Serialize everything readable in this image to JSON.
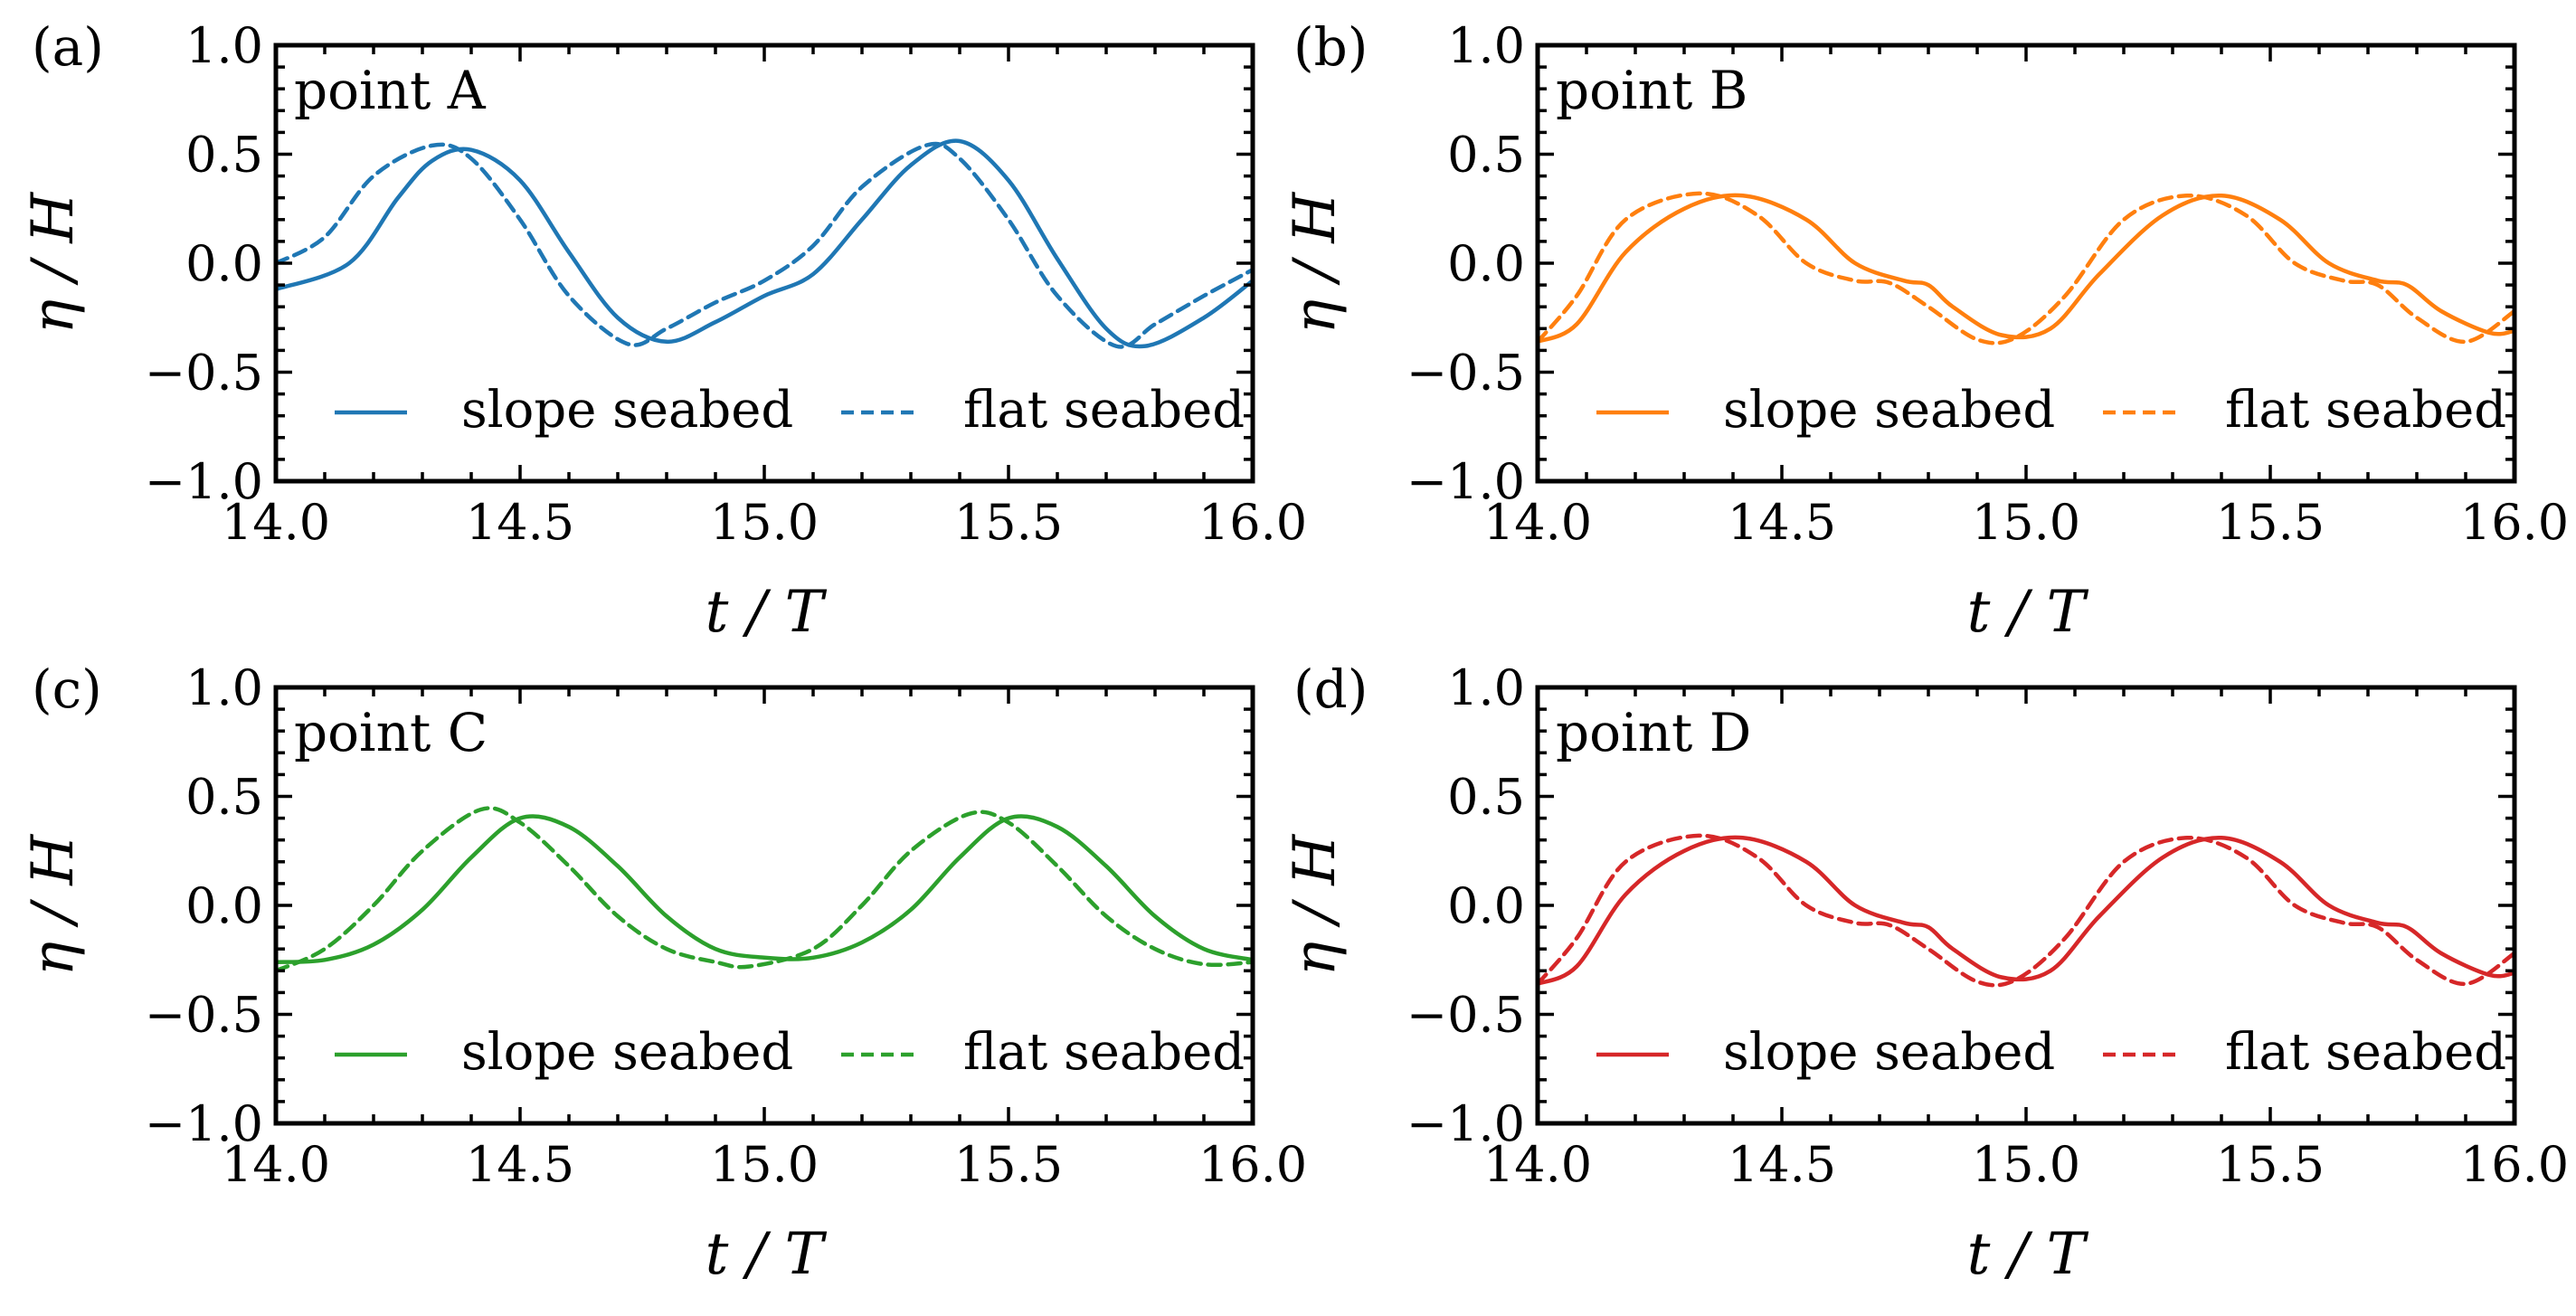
{
  "chart_data": [
    {
      "type": "line",
      "panel_label": "(a)",
      "title": "point A",
      "color": "#1f77b4",
      "xlabel": "t / T",
      "ylabel": "η / H",
      "xlim": [
        14.0,
        16.0
      ],
      "ylim": [
        -1.0,
        1.0
      ],
      "xticks": [
        "14.0",
        "14.5",
        "15.0",
        "15.5",
        "16.0"
      ],
      "yticks": [
        "1.0",
        "0.5",
        "0.0",
        "−0.5",
        "−1.0"
      ],
      "legend": "bottom",
      "series": [
        {
          "name": "slope seabed",
          "style": "solid",
          "x": [
            14.0,
            14.15,
            14.25,
            14.32,
            14.4,
            14.5,
            14.6,
            14.7,
            14.8,
            14.9,
            15.0,
            15.1,
            15.2,
            15.3,
            15.4,
            15.5,
            15.6,
            15.7,
            15.78,
            15.9,
            16.0
          ],
          "y": [
            -0.12,
            0.0,
            0.3,
            0.47,
            0.52,
            0.38,
            0.05,
            -0.25,
            -0.36,
            -0.27,
            -0.15,
            -0.05,
            0.2,
            0.45,
            0.56,
            0.38,
            0.02,
            -0.3,
            -0.38,
            -0.25,
            -0.08
          ]
        },
        {
          "name": "flat seabed",
          "style": "dashed",
          "x": [
            14.0,
            14.1,
            14.2,
            14.32,
            14.4,
            14.5,
            14.6,
            14.72,
            14.8,
            14.9,
            15.0,
            15.1,
            15.2,
            15.33,
            15.4,
            15.5,
            15.6,
            15.72,
            15.8,
            15.9,
            16.0
          ],
          "y": [
            0.0,
            0.12,
            0.4,
            0.54,
            0.48,
            0.2,
            -0.15,
            -0.37,
            -0.3,
            -0.18,
            -0.08,
            0.08,
            0.35,
            0.54,
            0.48,
            0.2,
            -0.15,
            -0.38,
            -0.28,
            -0.15,
            -0.03
          ]
        }
      ]
    },
    {
      "type": "line",
      "panel_label": "(b)",
      "title": "point B",
      "color": "#ff7f0e",
      "xlabel": "t / T",
      "ylabel": "η / H",
      "xlim": [
        14.0,
        16.0
      ],
      "ylim": [
        -1.0,
        1.0
      ],
      "xticks": [
        "14.0",
        "14.5",
        "15.0",
        "15.5",
        "16.0"
      ],
      "yticks": [
        "1.0",
        "0.5",
        "0.0",
        "−0.5",
        "−1.0"
      ],
      "legend": "bottom",
      "series": [
        {
          "name": "slope seabed",
          "style": "solid",
          "x": [
            14.0,
            14.08,
            14.18,
            14.3,
            14.42,
            14.55,
            14.65,
            14.75,
            14.8,
            14.85,
            14.95,
            15.05,
            15.15,
            15.28,
            15.4,
            15.52,
            15.62,
            15.72,
            15.78,
            15.85,
            15.95,
            16.0
          ],
          "y": [
            -0.36,
            -0.28,
            0.05,
            0.25,
            0.31,
            0.2,
            0.0,
            -0.08,
            -0.1,
            -0.2,
            -0.33,
            -0.3,
            -0.05,
            0.22,
            0.31,
            0.2,
            0.0,
            -0.08,
            -0.1,
            -0.22,
            -0.32,
            -0.31
          ]
        },
        {
          "name": "flat seabed",
          "style": "dashed",
          "x": [
            14.0,
            14.08,
            14.18,
            14.33,
            14.45,
            14.55,
            14.65,
            14.72,
            14.8,
            14.9,
            14.98,
            15.08,
            15.2,
            15.33,
            15.45,
            15.55,
            15.65,
            15.72,
            15.8,
            15.9,
            16.0
          ],
          "y": [
            -0.36,
            -0.15,
            0.2,
            0.32,
            0.22,
            0.0,
            -0.08,
            -0.09,
            -0.2,
            -0.35,
            -0.34,
            -0.15,
            0.2,
            0.31,
            0.22,
            0.0,
            -0.08,
            -0.1,
            -0.25,
            -0.36,
            -0.22
          ]
        }
      ]
    },
    {
      "type": "line",
      "panel_label": "(c)",
      "title": "point C",
      "color": "#2ca02c",
      "xlabel": "t / T",
      "ylabel": "η / H",
      "xlim": [
        14.0,
        16.0
      ],
      "ylim": [
        -1.0,
        1.0
      ],
      "xticks": [
        "14.0",
        "14.5",
        "15.0",
        "15.5",
        "16.0"
      ],
      "yticks": [
        "1.0",
        "0.5",
        "0.0",
        "−0.5",
        "−1.0"
      ],
      "legend": "bottom",
      "series": [
        {
          "name": "slope seabed",
          "style": "solid",
          "x": [
            14.0,
            14.1,
            14.2,
            14.3,
            14.4,
            14.5,
            14.6,
            14.7,
            14.8,
            14.9,
            15.0,
            15.1,
            15.2,
            15.3,
            15.4,
            15.5,
            15.6,
            15.7,
            15.8,
            15.9,
            16.0
          ],
          "y": [
            -0.26,
            -0.25,
            -0.18,
            -0.02,
            0.22,
            0.4,
            0.36,
            0.18,
            -0.05,
            -0.2,
            -0.24,
            -0.24,
            -0.17,
            -0.02,
            0.22,
            0.4,
            0.36,
            0.18,
            -0.05,
            -0.2,
            -0.25
          ]
        },
        {
          "name": "flat seabed",
          "style": "dashed",
          "x": [
            14.0,
            14.1,
            14.2,
            14.3,
            14.42,
            14.5,
            14.6,
            14.7,
            14.8,
            14.9,
            14.97,
            15.1,
            15.2,
            15.3,
            15.42,
            15.5,
            15.6,
            15.7,
            15.8,
            15.9,
            16.0
          ],
          "y": [
            -0.3,
            -0.2,
            0.0,
            0.25,
            0.44,
            0.38,
            0.18,
            -0.05,
            -0.2,
            -0.26,
            -0.28,
            -0.2,
            0.0,
            0.25,
            0.42,
            0.38,
            0.18,
            -0.05,
            -0.2,
            -0.27,
            -0.26
          ]
        }
      ]
    },
    {
      "type": "line",
      "panel_label": "(d)",
      "title": "point D",
      "color": "#d62728",
      "xlabel": "t / T",
      "ylabel": "η / H",
      "xlim": [
        14.0,
        16.0
      ],
      "ylim": [
        -1.0,
        1.0
      ],
      "xticks": [
        "14.0",
        "14.5",
        "15.0",
        "15.5",
        "16.0"
      ],
      "yticks": [
        "1.0",
        "0.5",
        "0.0",
        "−0.5",
        "−1.0"
      ],
      "legend": "bottom",
      "series": [
        {
          "name": "slope seabed",
          "style": "solid",
          "x": [
            14.0,
            14.08,
            14.18,
            14.3,
            14.42,
            14.55,
            14.65,
            14.75,
            14.8,
            14.85,
            14.95,
            15.05,
            15.15,
            15.28,
            15.4,
            15.52,
            15.62,
            15.72,
            15.78,
            15.85,
            15.95,
            16.0
          ],
          "y": [
            -0.36,
            -0.28,
            0.05,
            0.25,
            0.31,
            0.2,
            0.0,
            -0.08,
            -0.1,
            -0.2,
            -0.33,
            -0.3,
            -0.05,
            0.22,
            0.31,
            0.2,
            0.0,
            -0.08,
            -0.1,
            -0.22,
            -0.32,
            -0.31
          ]
        },
        {
          "name": "flat seabed",
          "style": "dashed",
          "x": [
            14.0,
            14.08,
            14.18,
            14.33,
            14.45,
            14.55,
            14.65,
            14.72,
            14.8,
            14.9,
            14.98,
            15.08,
            15.2,
            15.33,
            15.45,
            15.55,
            15.65,
            15.72,
            15.8,
            15.9,
            16.0
          ],
          "y": [
            -0.36,
            -0.15,
            0.2,
            0.32,
            0.22,
            0.0,
            -0.08,
            -0.09,
            -0.2,
            -0.35,
            -0.34,
            -0.15,
            0.2,
            0.31,
            0.22,
            0.0,
            -0.08,
            -0.1,
            -0.25,
            -0.36,
            -0.22
          ]
        }
      ]
    }
  ]
}
